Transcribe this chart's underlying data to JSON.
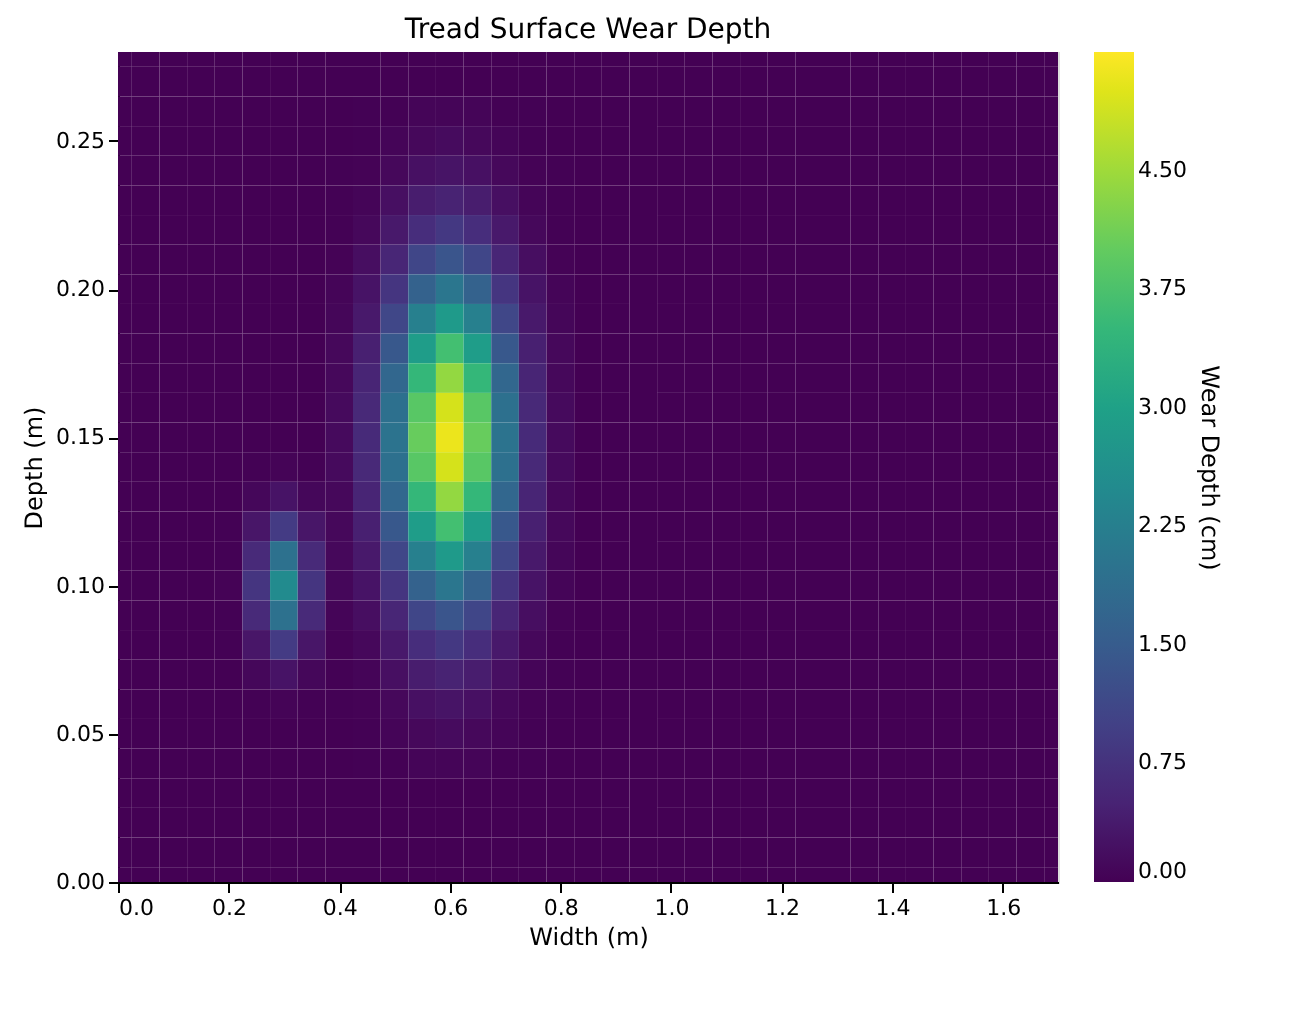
{
  "chart_data": {
    "type": "heatmap",
    "title": "Tread Surface Wear Depth",
    "xlabel": "Width (m)",
    "ylabel": "Depth (m)",
    "clabel": "Wear Depth (cm)",
    "xlim": [
      0,
      1.7
    ],
    "ylim": [
      0,
      0.28
    ],
    "xticks": [
      {
        "value": 0,
        "label": "0.0"
      },
      {
        "value": 0.2,
        "label": "0.2"
      },
      {
        "value": 0.4,
        "label": "0.4"
      },
      {
        "value": 0.6,
        "label": "0.6"
      },
      {
        "value": 0.8,
        "label": "0.8"
      },
      {
        "value": 1,
        "label": "1.0"
      },
      {
        "value": 1.2,
        "label": "1.2"
      },
      {
        "value": 1.4,
        "label": "1.4"
      },
      {
        "value": 1.6,
        "label": "1.6"
      }
    ],
    "yticks": [
      {
        "value": 0,
        "label": "0.00"
      },
      {
        "value": 0.05,
        "label": "0.05"
      },
      {
        "value": 0.1,
        "label": "0.10"
      },
      {
        "value": 0.15,
        "label": "0.15"
      },
      {
        "value": 0.2,
        "label": "0.20"
      },
      {
        "value": 0.25,
        "label": "0.25"
      }
    ],
    "clim": [
      0,
      5.25
    ],
    "cticks": [
      {
        "value": 0,
        "label": "0.00"
      },
      {
        "value": 0.75,
        "label": "0.75"
      },
      {
        "value": 1.5,
        "label": "1.50"
      },
      {
        "value": 2.25,
        "label": "2.25"
      },
      {
        "value": 3,
        "label": "3.00"
      },
      {
        "value": 3.75,
        "label": "3.75"
      },
      {
        "value": 4.5,
        "label": "4.50"
      }
    ],
    "cells": [
      [
        0,
        0,
        0,
        0,
        0,
        0,
        0,
        0,
        0,
        0,
        0,
        0,
        0,
        0,
        0,
        0,
        0,
        0,
        0,
        0,
        0,
        0,
        0,
        0,
        0,
        0,
        0,
        0,
        0,
        0,
        0,
        0,
        0,
        0,
        0
      ],
      [
        0,
        0,
        0,
        0,
        0,
        0,
        0,
        0,
        0,
        0,
        0,
        0,
        0,
        0,
        0,
        0,
        0,
        0,
        0,
        0,
        0,
        0,
        0,
        0,
        0,
        0,
        0,
        0,
        0,
        0,
        0,
        0,
        0,
        0,
        0
      ],
      [
        0,
        0,
        0,
        0,
        0,
        0,
        0,
        0,
        0,
        0.01,
        0.02,
        0.05,
        0.06,
        0.05,
        0.02,
        0.01,
        0,
        0,
        0,
        0,
        0,
        0,
        0,
        0,
        0,
        0,
        0,
        0,
        0,
        0,
        0,
        0,
        0,
        0,
        0
      ],
      [
        0,
        0,
        0,
        0,
        0,
        0,
        0,
        0,
        0,
        0.02,
        0.05,
        0.1,
        0.13,
        0.1,
        0.05,
        0.02,
        0,
        0,
        0,
        0,
        0,
        0,
        0,
        0,
        0,
        0,
        0,
        0,
        0,
        0,
        0,
        0,
        0,
        0,
        0
      ],
      [
        0,
        0,
        0,
        0,
        0,
        0,
        0,
        0,
        0.01,
        0.03,
        0.1,
        0.21,
        0.26,
        0.21,
        0.1,
        0.03,
        0.01,
        0,
        0,
        0,
        0,
        0,
        0,
        0,
        0,
        0,
        0,
        0,
        0,
        0,
        0,
        0,
        0,
        0,
        0
      ],
      [
        0,
        0,
        0,
        0,
        0,
        0,
        0,
        0,
        0.01,
        0.06,
        0.19,
        0.39,
        0.49,
        0.39,
        0.19,
        0.06,
        0.01,
        0,
        0,
        0,
        0,
        0,
        0,
        0,
        0,
        0,
        0,
        0,
        0,
        0,
        0,
        0,
        0,
        0,
        0
      ],
      [
        0,
        0,
        0,
        0,
        0,
        0,
        0,
        0,
        0.02,
        0.1,
        0.33,
        0.67,
        0.85,
        0.67,
        0.33,
        0.1,
        0.02,
        0,
        0,
        0,
        0,
        0,
        0,
        0,
        0,
        0,
        0,
        0,
        0,
        0,
        0,
        0,
        0,
        0,
        0
      ],
      [
        0,
        0,
        0,
        0,
        0,
        0,
        0,
        0,
        0.03,
        0.17,
        0.54,
        1.08,
        1.37,
        1.08,
        0.54,
        0.17,
        0.03,
        0,
        0,
        0,
        0,
        0,
        0,
        0,
        0,
        0,
        0,
        0,
        0,
        0,
        0,
        0,
        0,
        0,
        0
      ],
      [
        0,
        0,
        0,
        0,
        0,
        0,
        0,
        0,
        0.05,
        0.25,
        0.8,
        1.62,
        2.05,
        1.62,
        0.8,
        0.25,
        0.05,
        0,
        0,
        0,
        0,
        0,
        0,
        0,
        0,
        0,
        0,
        0,
        0,
        0,
        0,
        0,
        0,
        0,
        0
      ],
      [
        0,
        0,
        0,
        0,
        0,
        0,
        0,
        0,
        0.07,
        0.34,
        1.11,
        2.25,
        2.84,
        2.25,
        1.11,
        0.34,
        0.07,
        0,
        0,
        0,
        0,
        0,
        0,
        0,
        0,
        0,
        0,
        0,
        0,
        0,
        0,
        0,
        0,
        0,
        0
      ],
      [
        0,
        0,
        0,
        0,
        0,
        0,
        0,
        0,
        0.09,
        0.44,
        1.43,
        2.9,
        3.67,
        2.9,
        1.43,
        0.44,
        0.09,
        0,
        0,
        0,
        0,
        0,
        0,
        0,
        0,
        0,
        0,
        0,
        0,
        0,
        0,
        0,
        0,
        0,
        0
      ],
      [
        0,
        0,
        0,
        0,
        0,
        0,
        0,
        0,
        0.1,
        0.53,
        1.72,
        3.49,
        4.41,
        3.49,
        1.72,
        0.53,
        0.1,
        0,
        0,
        0,
        0,
        0,
        0,
        0,
        0,
        0,
        0,
        0,
        0,
        0,
        0,
        0,
        0,
        0,
        0
      ],
      [
        0,
        0,
        0,
        0,
        0,
        0,
        0,
        0,
        0.12,
        0.6,
        1.92,
        3.89,
        4.92,
        3.89,
        1.92,
        0.6,
        0.12,
        0,
        0,
        0,
        0,
        0,
        0,
        0,
        0,
        0,
        0,
        0,
        0,
        0,
        0,
        0,
        0,
        0,
        0
      ],
      [
        0,
        0,
        0,
        0,
        0,
        0,
        0,
        0,
        0.12,
        0.62,
        1.99,
        4.03,
        5.1,
        4.03,
        1.99,
        0.62,
        0.12,
        0,
        0,
        0,
        0,
        0,
        0,
        0,
        0,
        0,
        0,
        0,
        0,
        0,
        0,
        0,
        0,
        0,
        0
      ],
      [
        0,
        0,
        0,
        0,
        0,
        0.01,
        0.04,
        0.01,
        0.12,
        0.6,
        1.92,
        3.89,
        4.92,
        3.89,
        1.92,
        0.6,
        0.12,
        0,
        0,
        0,
        0,
        0,
        0,
        0,
        0,
        0,
        0,
        0,
        0,
        0,
        0,
        0,
        0,
        0,
        0
      ],
      [
        0,
        0,
        0,
        0,
        0,
        0.08,
        0.25,
        0.08,
        0.1,
        0.53,
        1.72,
        3.49,
        4.41,
        3.49,
        1.72,
        0.53,
        0.1,
        0,
        0,
        0,
        0,
        0,
        0,
        0,
        0,
        0,
        0,
        0,
        0,
        0,
        0,
        0,
        0,
        0,
        0
      ],
      [
        0,
        0,
        0,
        0,
        0.01,
        0.29,
        0.9,
        0.29,
        0.1,
        0.44,
        1.43,
        2.9,
        3.67,
        2.9,
        1.43,
        0.44,
        0.09,
        0,
        0,
        0,
        0,
        0,
        0,
        0,
        0,
        0,
        0,
        0,
        0,
        0,
        0,
        0,
        0,
        0,
        0
      ],
      [
        0,
        0,
        0,
        0,
        0.02,
        0.61,
        1.94,
        0.61,
        0.09,
        0.34,
        1.11,
        2.25,
        2.84,
        2.25,
        1.11,
        0.34,
        0.07,
        0,
        0,
        0,
        0,
        0,
        0,
        0,
        0,
        0,
        0,
        0,
        0,
        0,
        0,
        0,
        0,
        0,
        0
      ],
      [
        0,
        0,
        0,
        0,
        0.03,
        0.79,
        2.5,
        0.79,
        0.08,
        0.25,
        0.8,
        1.62,
        2.05,
        1.62,
        0.8,
        0.25,
        0.05,
        0,
        0,
        0,
        0,
        0,
        0,
        0,
        0,
        0,
        0,
        0,
        0,
        0,
        0,
        0,
        0,
        0,
        0
      ],
      [
        0,
        0,
        0,
        0,
        0.02,
        0.61,
        1.94,
        0.61,
        0.05,
        0.17,
        0.54,
        1.08,
        1.37,
        1.08,
        0.54,
        0.17,
        0.03,
        0,
        0,
        0,
        0,
        0,
        0,
        0,
        0,
        0,
        0,
        0,
        0,
        0,
        0,
        0,
        0,
        0,
        0
      ],
      [
        0,
        0,
        0,
        0,
        0.01,
        0.29,
        0.9,
        0.29,
        0.03,
        0.1,
        0.33,
        0.67,
        0.85,
        0.67,
        0.33,
        0.1,
        0.02,
        0,
        0,
        0,
        0,
        0,
        0,
        0,
        0,
        0,
        0,
        0,
        0,
        0,
        0,
        0,
        0,
        0,
        0
      ],
      [
        0,
        0,
        0,
        0,
        0,
        0.08,
        0.25,
        0.08,
        0.01,
        0.06,
        0.19,
        0.39,
        0.49,
        0.39,
        0.19,
        0.06,
        0.01,
        0,
        0,
        0,
        0,
        0,
        0,
        0,
        0,
        0,
        0,
        0,
        0,
        0,
        0,
        0,
        0,
        0,
        0
      ],
      [
        0,
        0,
        0,
        0,
        0,
        0.01,
        0.04,
        0.01,
        0.01,
        0.03,
        0.1,
        0.21,
        0.26,
        0.21,
        0.1,
        0.03,
        0.01,
        0,
        0,
        0,
        0,
        0,
        0,
        0,
        0,
        0,
        0,
        0,
        0,
        0,
        0,
        0,
        0,
        0,
        0
      ],
      [
        0,
        0,
        0,
        0,
        0,
        0,
        0,
        0,
        0,
        0.02,
        0.05,
        0.1,
        0.13,
        0.1,
        0.05,
        0.02,
        0,
        0,
        0,
        0,
        0,
        0,
        0,
        0,
        0,
        0,
        0,
        0,
        0,
        0,
        0,
        0,
        0,
        0,
        0
      ],
      [
        0,
        0,
        0,
        0,
        0,
        0,
        0,
        0,
        0,
        0.01,
        0.02,
        0.05,
        0.06,
        0.05,
        0.02,
        0.01,
        0,
        0,
        0,
        0,
        0,
        0,
        0,
        0,
        0,
        0,
        0,
        0,
        0,
        0,
        0,
        0,
        0,
        0,
        0
      ],
      [
        0,
        0,
        0,
        0,
        0,
        0,
        0,
        0,
        0,
        0,
        0,
        0,
        0,
        0,
        0,
        0,
        0,
        0,
        0,
        0,
        0,
        0,
        0,
        0,
        0,
        0,
        0,
        0,
        0,
        0,
        0,
        0,
        0,
        0,
        0
      ],
      [
        0,
        0,
        0,
        0,
        0,
        0,
        0,
        0,
        0,
        0,
        0,
        0,
        0,
        0,
        0,
        0,
        0,
        0,
        0,
        0,
        0,
        0,
        0,
        0,
        0,
        0,
        0,
        0,
        0,
        0,
        0,
        0,
        0,
        0,
        0
      ],
      [
        0,
        0,
        0,
        0,
        0,
        0,
        0,
        0,
        0,
        0,
        0,
        0,
        0,
        0,
        0,
        0,
        0,
        0,
        0,
        0,
        0,
        0,
        0,
        0,
        0,
        0,
        0,
        0,
        0,
        0,
        0,
        0,
        0,
        0,
        0
      ],
      [
        0,
        0,
        0,
        0,
        0,
        0,
        0,
        0,
        0,
        0,
        0,
        0,
        0,
        0,
        0,
        0,
        0,
        0,
        0,
        0,
        0,
        0,
        0,
        0,
        0,
        0,
        0,
        0,
        0,
        0,
        0,
        0,
        0,
        0,
        0
      ]
    ]
  }
}
